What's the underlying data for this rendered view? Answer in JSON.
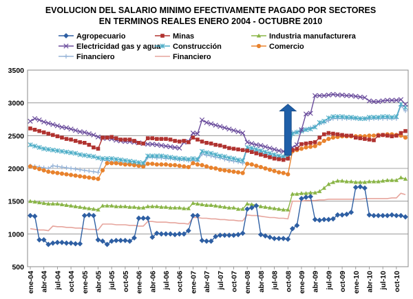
{
  "chart_data": {
    "type": "line",
    "title": "EVOLUCION DEL SALARIO MINIMO EFECTIVAMENTE PAGADO POR SECTORES",
    "subtitle": "EN TERMINOS REALES ENERO 2004 - OCTUBRE 2010",
    "ylim": [
      500,
      3500
    ],
    "yticks": [
      500,
      1000,
      1500,
      2000,
      2500,
      3000,
      3500
    ],
    "grid": true,
    "legend_position": "top",
    "x_labels": [
      "ene-04",
      "abr-04",
      "jul-04",
      "oct-04",
      "ene-05",
      "abr-05",
      "jul-05",
      "oct-05",
      "ene-06",
      "abr-06",
      "jul-06",
      "oct-06",
      "ene-07",
      "abr-07",
      "jul-07",
      "oct-07",
      "ene-08",
      "abr-08",
      "jul-08",
      "oct-08",
      "ene-09",
      "abr-09",
      "jul-09",
      "oct-09",
      "ene-10",
      "abr-10",
      "jul-10",
      "oct-10"
    ],
    "annotation": {
      "type": "arrow-up",
      "x_index": 57,
      "y_from": 2200,
      "y_to": 2980,
      "color": "#1f5fa8"
    },
    "series": [
      {
        "name": "Agropecuario",
        "color": "#2e5fa3",
        "marker": "diamond",
        "values": [
          1280,
          1270,
          910,
          910,
          840,
          860,
          870,
          870,
          860,
          860,
          850,
          850,
          1280,
          1290,
          1280,
          910,
          890,
          840,
          890,
          900,
          900,
          900,
          890,
          940,
          1240,
          1240,
          1240,
          950,
          1010,
          1000,
          1000,
          1000,
          990,
          1000,
          1000,
          1050,
          1280,
          1280,
          900,
          890,
          890,
          960,
          980,
          980,
          980,
          980,
          990,
          1010,
          1380,
          1400,
          1430,
          990,
          970,
          950,
          930,
          930,
          930,
          920,
          1080,
          1130,
          1540,
          1560,
          1570,
          1220,
          1210,
          1220,
          1220,
          1230,
          1290,
          1290,
          1300,
          1330,
          1710,
          1720,
          1700,
          1290,
          1280,
          1280,
          1280,
          1280,
          1290,
          1280,
          1280,
          1260
        ]
      },
      {
        "name": "Minas",
        "color": "#b0322f",
        "marker": "square",
        "values": [
          2610,
          2590,
          2570,
          2550,
          2530,
          2510,
          2490,
          2470,
          2450,
          2440,
          2420,
          2400,
          2390,
          2360,
          2320,
          2300,
          2470,
          2470,
          2480,
          2460,
          2440,
          2440,
          2440,
          2420,
          2390,
          2380,
          2460,
          2460,
          2450,
          2450,
          2450,
          2440,
          2420,
          2410,
          2420,
          2400,
          2470,
          2440,
          2410,
          2390,
          2380,
          2360,
          2350,
          2330,
          2310,
          2300,
          2290,
          2280,
          2270,
          2250,
          2230,
          2210,
          2190,
          2170,
          2150,
          2140,
          2130,
          2150,
          2280,
          2300,
          2370,
          2380,
          2390,
          2400,
          2470,
          2520,
          2540,
          2530,
          2520,
          2510,
          2500,
          2500,
          2470,
          2460,
          2450,
          2440,
          2430,
          2500,
          2510,
          2500,
          2490,
          2500,
          2540,
          2570
        ]
      },
      {
        "name": "Industria manufacturera",
        "color": "#8ab547",
        "marker": "triangle",
        "values": [
          1500,
          1490,
          1480,
          1470,
          1460,
          1460,
          1460,
          1450,
          1440,
          1430,
          1420,
          1410,
          1400,
          1390,
          1380,
          1370,
          1430,
          1430,
          1430,
          1420,
          1420,
          1420,
          1410,
          1410,
          1400,
          1400,
          1420,
          1420,
          1420,
          1410,
          1410,
          1400,
          1400,
          1400,
          1390,
          1390,
          1470,
          1460,
          1450,
          1440,
          1440,
          1430,
          1420,
          1410,
          1400,
          1400,
          1380,
          1380,
          1460,
          1450,
          1440,
          1420,
          1410,
          1400,
          1390,
          1380,
          1370,
          1370,
          1610,
          1610,
          1620,
          1620,
          1630,
          1630,
          1650,
          1700,
          1760,
          1790,
          1810,
          1810,
          1800,
          1800,
          1790,
          1790,
          1790,
          1800,
          1800,
          1800,
          1810,
          1820,
          1820,
          1820,
          1860,
          1840
        ]
      },
      {
        "name": "Electricidad gas y agua",
        "color": "#6a4c9c",
        "marker": "x",
        "values": [
          2720,
          2760,
          2740,
          2710,
          2690,
          2670,
          2650,
          2630,
          2620,
          2600,
          2580,
          2560,
          2550,
          2530,
          2510,
          2480,
          2460,
          2460,
          2450,
          2430,
          2420,
          2410,
          2410,
          2400,
          2390,
          2380,
          2370,
          2370,
          2360,
          2350,
          2340,
          2330,
          2320,
          2310,
          2400,
          2410,
          2540,
          2530,
          2740,
          2700,
          2680,
          2660,
          2640,
          2620,
          2600,
          2580,
          2560,
          2540,
          2400,
          2380,
          2360,
          2350,
          2330,
          2310,
          2290,
          2270,
          2260,
          2270,
          2320,
          2360,
          2590,
          2830,
          2840,
          3110,
          3110,
          3110,
          3120,
          3130,
          3120,
          3120,
          3110,
          3110,
          3100,
          3090,
          3080,
          3030,
          3020,
          3020,
          3030,
          3040,
          3040,
          3040,
          3050,
          2980
        ]
      },
      {
        "name": "Construcción",
        "color": "#4bacc6",
        "marker": "star",
        "values": [
          2360,
          2340,
          2320,
          2300,
          2290,
          2280,
          2270,
          2260,
          2250,
          2240,
          2230,
          2210,
          2200,
          2190,
          2180,
          2160,
          2150,
          2150,
          2150,
          2140,
          2130,
          2120,
          2110,
          2100,
          2090,
          2080,
          2190,
          2190,
          2190,
          2190,
          2180,
          2170,
          2160,
          2150,
          2150,
          2140,
          2150,
          2140,
          2260,
          2240,
          2230,
          2210,
          2190,
          2180,
          2160,
          2150,
          2130,
          2120,
          2320,
          2310,
          2290,
          2270,
          2250,
          2230,
          2210,
          2190,
          2180,
          2190,
          2530,
          2550,
          2570,
          2590,
          2600,
          2630,
          2700,
          2720,
          2770,
          2790,
          2790,
          2790,
          2780,
          2780,
          2770,
          2760,
          2760,
          2780,
          2780,
          2780,
          2790,
          2790,
          2780,
          2790,
          2980,
          2930
        ]
      },
      {
        "name": "Comercio",
        "color": "#e8822d",
        "marker": "circle",
        "values": [
          2030,
          2010,
          1990,
          1970,
          1950,
          1940,
          1930,
          1920,
          1910,
          1900,
          1890,
          1880,
          1870,
          1860,
          1850,
          1840,
          1970,
          2080,
          2080,
          2080,
          2070,
          2060,
          2060,
          2050,
          2040,
          2030,
          2070,
          2070,
          2060,
          2060,
          2060,
          2050,
          2050,
          2040,
          2030,
          2020,
          2080,
          2060,
          2050,
          2030,
          2010,
          2000,
          1980,
          1970,
          1960,
          1950,
          1940,
          1930,
          2070,
          2060,
          2040,
          2020,
          2000,
          1980,
          1960,
          1940,
          1930,
          1910,
          2260,
          2280,
          2300,
          2320,
          2330,
          2340,
          2380,
          2420,
          2450,
          2470,
          2480,
          2490,
          2490,
          2490,
          2490,
          2490,
          2490,
          2500,
          2500,
          2510,
          2510,
          2520,
          2520,
          2510,
          2500,
          2470
        ]
      },
      {
        "name": "Financiero",
        "color": "#95b3d7",
        "marker": "plus",
        "values": [
          2040,
          2030,
          2020,
          2010,
          2000,
          2040,
          2030,
          2020,
          2010,
          2000,
          1990,
          1980,
          1970,
          1960,
          1950,
          1940,
          2130,
          2120,
          2100,
          2090,
          2080,
          2070,
          2060,
          2050,
          2050,
          2040,
          2170,
          2170,
          2160,
          2160,
          2150,
          2150,
          2140,
          2130,
          2130,
          2120,
          2120,
          2110,
          2220,
          2200,
          2190,
          2170,
          2160,
          2140,
          2120,
          2110,
          2100,
          2080,
          2300,
          2280,
          2260,
          2240,
          2220,
          2200,
          2180,
          2170,
          2160,
          2150,
          2550,
          2560,
          2590,
          2600,
          2620,
          2640,
          2680,
          2700,
          2730,
          2760,
          2760,
          2760,
          2760,
          2760,
          2760,
          2760,
          2760,
          2750,
          2760,
          2760,
          2760,
          2760,
          2760,
          2760,
          2960,
          2880
        ]
      },
      {
        "name": "Financiero",
        "color": "#e6a49c",
        "marker": "none",
        "values": [
          1080,
          1070,
          1060,
          1060,
          1050,
          1120,
          1110,
          1110,
          1100,
          1100,
          1090,
          1090,
          1080,
          1070,
          1070,
          1060,
          1150,
          1150,
          1150,
          1140,
          1140,
          1140,
          1130,
          1130,
          1120,
          1120,
          1190,
          1190,
          1180,
          1180,
          1180,
          1170,
          1170,
          1160,
          1160,
          1150,
          1250,
          1250,
          1240,
          1240,
          1230,
          1230,
          1220,
          1220,
          1210,
          1210,
          1200,
          1200,
          1290,
          1280,
          1280,
          1270,
          1260,
          1250,
          1250,
          1240,
          1240,
          1230,
          1500,
          1500,
          1500,
          1510,
          1510,
          1510,
          1520,
          1520,
          1530,
          1530,
          1530,
          1530,
          1530,
          1530,
          1530,
          1530,
          1540,
          1540,
          1540,
          1540,
          1540,
          1540,
          1550,
          1550,
          1620,
          1600
        ]
      }
    ]
  }
}
